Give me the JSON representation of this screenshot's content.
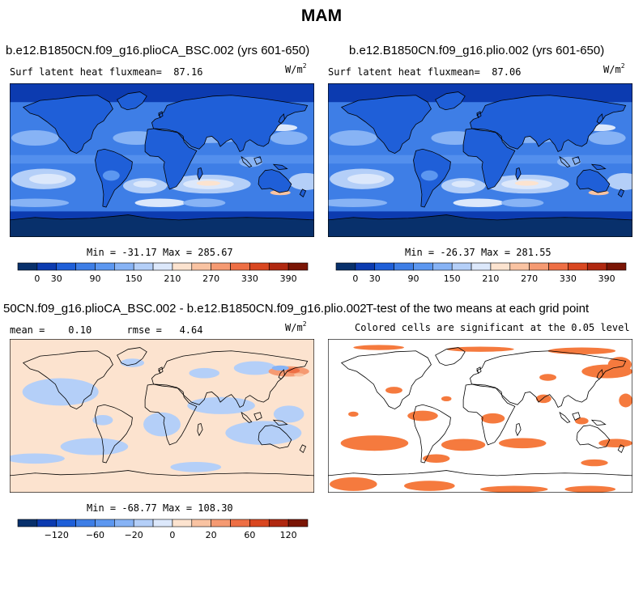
{
  "season_title": "MAM",
  "colors": {
    "heat_scale": [
      "#08306b",
      "#0c3bb0",
      "#1f5fd8",
      "#3e7ee6",
      "#5c97f0",
      "#87b3f5",
      "#b4cff8",
      "#dce8fb",
      "#fce3cf",
      "#f9c3a2",
      "#f59a72",
      "#ee6f45",
      "#d94720",
      "#b02810",
      "#7a1505"
    ],
    "diff_scale": [
      "#08306b",
      "#0c3bb0",
      "#1f5fd8",
      "#3e7ee6",
      "#5c97f0",
      "#87b3f5",
      "#b4cff8",
      "#dce8fb",
      "#fce3cf",
      "#f9c3a2",
      "#f59a72",
      "#ee6f45",
      "#d94720",
      "#b02810",
      "#7a1505"
    ],
    "significance": "#f57a3e",
    "coastline": "#000000"
  },
  "panels": {
    "case1": {
      "title": "b.e12.B1850CN.f09_g16.plioCA_BSC.002 (yrs 601-650)",
      "field_label": "Surf latent heat flux",
      "mean_label": "mean=",
      "mean_value": "87.16",
      "units_base": "W/m",
      "units_exp": "2",
      "min_label": "Min = ",
      "min_value": "-31.17",
      "max_label": " Max = ",
      "max_value": "285.67"
    },
    "case2": {
      "title": "b.e12.B1850CN.f09_g16.plio.002 (yrs 601-650)",
      "field_label": "Surf latent heat flux",
      "mean_label": "mean=",
      "mean_value": "87.06",
      "units_base": "W/m",
      "units_exp": "2",
      "min_label": "Min = ",
      "min_value": "-26.37",
      "max_label": " Max = ",
      "max_value": "281.55"
    },
    "diff": {
      "title": "50CN.f09_g16.plioCA_BSC.002 - b.e12.B1850CN.f09_g16.plio.002",
      "mean_label": "mean = ",
      "mean_value": "0.10",
      "rmse_label": "rmse = ",
      "rmse_value": "4.64",
      "units_base": "W/m",
      "units_exp": "2",
      "min_label": "Min = ",
      "min_value": "-68.77",
      "max_label": " Max = ",
      "max_value": "108.30"
    },
    "ttest": {
      "title": "T-test of the two means at each grid point",
      "subtitle": "Colored cells are significant at the 0.05 level"
    }
  },
  "chart_data": [
    {
      "type": "heatmap",
      "title": "b.e12.B1850CN.f09_g16.plioCA_BSC.002 (yrs 601-650)",
      "variable": "Surf latent heat flux",
      "units": "W/m2",
      "mean": 87.16,
      "min": -31.17,
      "max": 285.67,
      "colorbar_levels": [
        0,
        30,
        60,
        90,
        120,
        150,
        180,
        210,
        240,
        270,
        300,
        330,
        360,
        390
      ],
      "colorbar_tick_labels": [
        "0",
        "30",
        "90",
        "150",
        "210",
        "270",
        "330",
        "390"
      ]
    },
    {
      "type": "heatmap",
      "title": "b.e12.B1850CN.f09_g16.plio.002 (yrs 601-650)",
      "variable": "Surf latent heat flux",
      "units": "W/m2",
      "mean": 87.06,
      "min": -26.37,
      "max": 281.55,
      "colorbar_levels": [
        0,
        30,
        60,
        90,
        120,
        150,
        180,
        210,
        240,
        270,
        300,
        330,
        360,
        390
      ],
      "colorbar_tick_labels": [
        "0",
        "30",
        "90",
        "150",
        "210",
        "270",
        "330",
        "390"
      ]
    },
    {
      "type": "heatmap",
      "title": "50CN.f09_g16.plioCA_BSC.002 - b.e12.B1850CN.f09_g16.plio.002",
      "units": "W/m2",
      "mean": 0.1,
      "rmse": 4.64,
      "min": -68.77,
      "max": 108.3,
      "colorbar_levels": [
        -120,
        -80,
        -60,
        -40,
        -20,
        -10,
        -5,
        0,
        5,
        10,
        20,
        40,
        60,
        80,
        120
      ],
      "colorbar_tick_labels": [
        "-120",
        "-60",
        "-20",
        "0",
        "20",
        "60",
        "120"
      ]
    },
    {
      "type": "heatmap",
      "title": "T-test of the two means at each grid point",
      "subtitle": "Colored cells are significant at the 0.05 level",
      "significance_level": 0.05
    }
  ]
}
